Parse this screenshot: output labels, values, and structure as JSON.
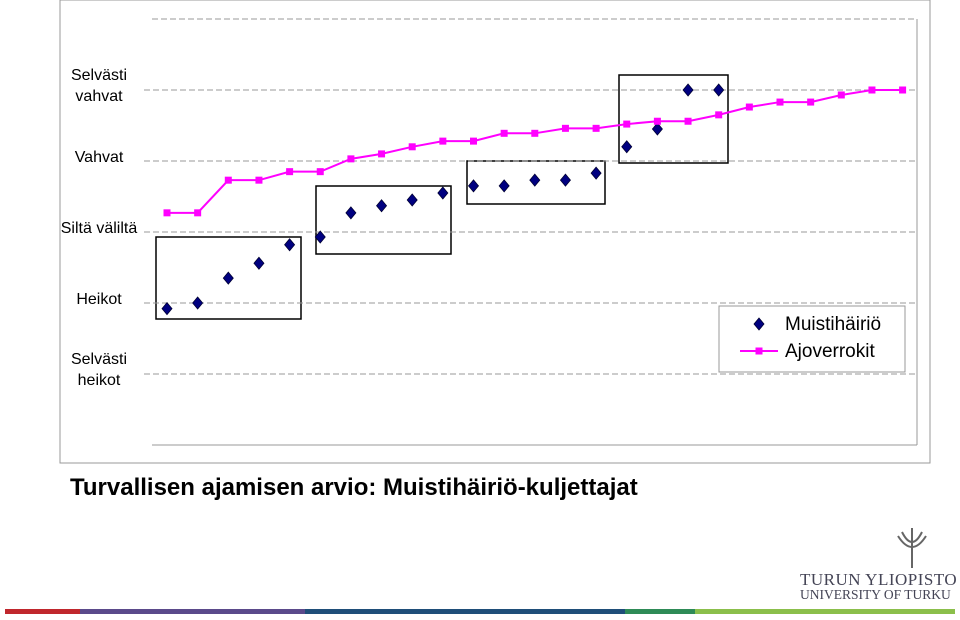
{
  "chart_data": {
    "type": "line",
    "title": "Turvallisen ajamisen arvio: Muistihäiriö-kuljettajat",
    "categories": [
      null,
      null,
      null,
      null,
      null,
      null,
      null,
      null,
      null,
      null,
      null,
      null,
      null,
      null,
      null,
      null,
      null,
      null,
      null,
      null,
      null,
      null,
      null,
      null,
      null
    ],
    "series": [
      {
        "name": "Muistihäiriö",
        "color": "#000080",
        "marker": "diamond",
        "line": false,
        "values": [
          1.92,
          2.0,
          2.35,
          2.56,
          2.82,
          2.93,
          3.27,
          3.37,
          3.45,
          3.55,
          3.65,
          3.65,
          3.73,
          3.73,
          3.83,
          4.2,
          4.45,
          5.0,
          5.0,
          null,
          null,
          null,
          null,
          null,
          null
        ]
      },
      {
        "name": "Ajoverrokit",
        "color": "#ff00ff",
        "marker": "square",
        "line": true,
        "values": [
          3.27,
          3.27,
          3.73,
          3.73,
          3.85,
          3.85,
          4.03,
          4.1,
          4.2,
          4.28,
          4.28,
          4.39,
          4.39,
          4.46,
          4.46,
          4.52,
          4.56,
          4.56,
          4.65,
          4.76,
          4.83,
          4.83,
          4.93,
          5.0,
          5.0
        ]
      }
    ],
    "ylim": [
      0,
      6
    ],
    "yticks": [
      {
        "value": 1,
        "label": "Selvästi heikot"
      },
      {
        "value": 2,
        "label": "Heikot"
      },
      {
        "value": 3,
        "label": "Siltä väliltä"
      },
      {
        "value": 4,
        "label": "Vahvat"
      },
      {
        "value": 5,
        "label": "Selvästi vahvat"
      }
    ],
    "grid": true,
    "legend": "right"
  },
  "logo": {
    "line1": "TURUN YLIOPISTO",
    "line2": "UNIVERSITY OF TURKU"
  }
}
